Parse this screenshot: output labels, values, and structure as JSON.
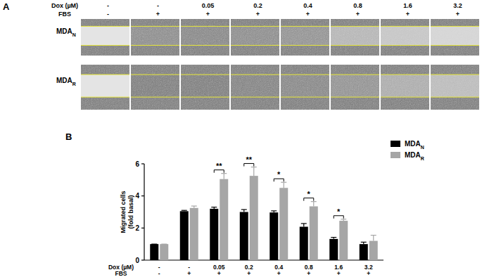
{
  "panel_a": {
    "label": "A",
    "header_rows": [
      {
        "label": "Dox (µM)",
        "values": [
          "-",
          "-",
          "0.05",
          "0.2",
          "0.4",
          "0.8",
          "1.6",
          "3.2"
        ]
      },
      {
        "label": "FBS",
        "values": [
          "-",
          "+",
          "+",
          "+",
          "+",
          "+",
          "+",
          "+"
        ]
      }
    ],
    "rows": [
      {
        "label": "MDA",
        "label_sub": "N"
      },
      {
        "label": "MDA",
        "label_sub": "R"
      }
    ]
  },
  "chart_data": {
    "type": "bar",
    "panel_label": "B",
    "ylabel": [
      "Migrated cells",
      "(fold basal)"
    ],
    "xlabel": "Dox (µM)",
    "categories": [
      "-",
      "-",
      "0.05",
      "0.2",
      "0.4",
      "0.8",
      "1.6",
      "3.2"
    ],
    "second_row": {
      "label": "FBS",
      "values": [
        "-",
        "+",
        "+",
        "+",
        "+",
        "+",
        "+",
        "+"
      ]
    },
    "series": [
      {
        "name": "MDA",
        "name_sub": "N",
        "color": "#000000",
        "values": [
          1,
          3.05,
          3.2,
          3.0,
          2.97,
          2.08,
          1.32,
          1.0
        ],
        "errors": [
          0,
          0.05,
          0.1,
          0.15,
          0.1,
          0.2,
          0.1,
          0.12
        ]
      },
      {
        "name": "MDA",
        "name_sub": "R",
        "color": "#a6a6a6",
        "values": [
          1,
          3.25,
          5.05,
          5.25,
          4.5,
          3.35,
          2.45,
          1.2
        ],
        "errors": [
          0,
          0.12,
          0.35,
          0.55,
          0.35,
          0.3,
          0.1,
          0.35
        ]
      }
    ],
    "annotations": [
      {
        "category": 2,
        "text": "**"
      },
      {
        "category": 3,
        "text": "**"
      },
      {
        "category": 4,
        "text": "*"
      },
      {
        "category": 5,
        "text": "*"
      },
      {
        "category": 6,
        "text": "*"
      }
    ],
    "ylim": [
      0,
      6
    ],
    "yticks": [
      0,
      2,
      4,
      6
    ],
    "grid": false,
    "legend": "upper-right"
  }
}
